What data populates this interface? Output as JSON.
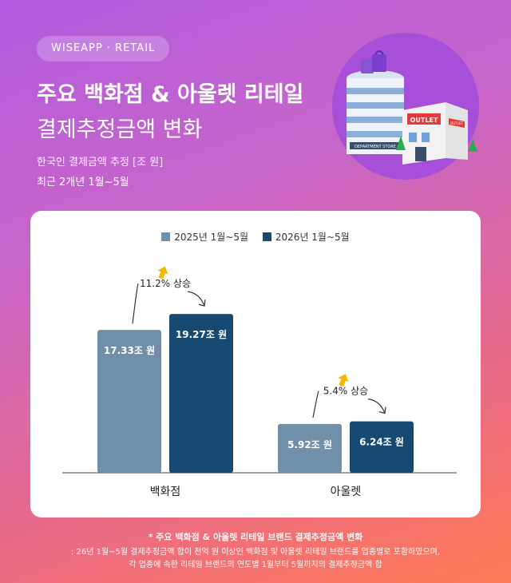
{
  "header": {
    "badge": "WISEAPP · RETAIL",
    "title_line1": "주요 백화점 & 아울렛 리테일",
    "title_line2": "결제추정금액 변화",
    "subtitle": "한국인 결제금액 추정 [조 원]",
    "period": "최근 2개년 1월~5월"
  },
  "illustration": {
    "department_store_sign": "DEPARTMENT STORE",
    "outlet_sign": "OUTLET",
    "outlet_side_sign": "OUTLET"
  },
  "colors": {
    "series_2025": "#6f8fab",
    "series_2026": "#164a73",
    "arrow": "#f5b800"
  },
  "chart_data": {
    "type": "bar",
    "categories": [
      "백화점",
      "아울렛"
    ],
    "series": [
      {
        "name": "2025년 1월~5월",
        "values": [
          17.33,
          5.92
        ],
        "labels": [
          "17.33조 원",
          "5.92조 원"
        ]
      },
      {
        "name": "2026년 1월~5월",
        "values": [
          19.27,
          6.24
        ],
        "labels": [
          "19.27조 원",
          "6.24조 원"
        ]
      }
    ],
    "annotations": [
      "11.2% 상승",
      "5.4% 상승"
    ],
    "ylim": [
      0,
      25
    ],
    "legend": "top-center",
    "grid": false
  },
  "footnote": {
    "line1": "* 주요 백화점 & 아울렛 리테일 브랜드 결제추정금액 변화",
    "line2": ": 26년 1월~5월 결제추정금액 합이 천억 원 이상인 백화점 및 아울렛 리테일 브랜드를 업종별로 포함하였으며,",
    "line3": "각 업종에 속한 리테일 브랜드의 연도별 1월부터 5월까지의 결제추정금액 합"
  }
}
